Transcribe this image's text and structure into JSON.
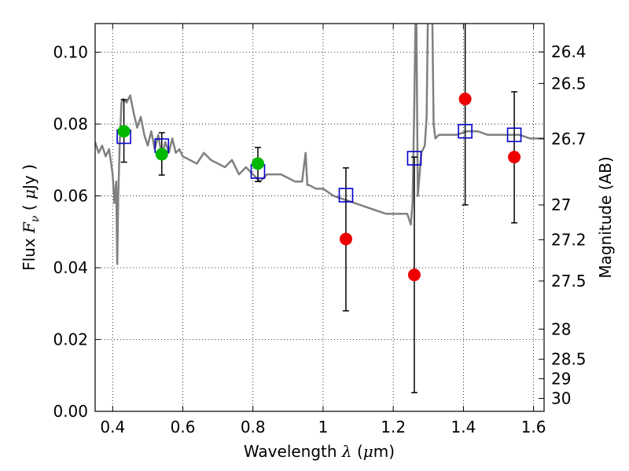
{
  "chart_data": {
    "type": "scatter",
    "xlabel": "Wavelength  λ (μm)",
    "ylabel": "Flux  Fν  ( μJy )",
    "y2label": "Magnitude (AB)",
    "xlim": [
      0.35,
      1.63
    ],
    "ylim": [
      0.0,
      0.108
    ],
    "x_ticks": [
      {
        "value": 0.4,
        "label": "0.4"
      },
      {
        "value": 0.6,
        "label": "0.6"
      },
      {
        "value": 0.8,
        "label": "0.8"
      },
      {
        "value": 1.0,
        "label": "1"
      },
      {
        "value": 1.2,
        "label": "1.2"
      },
      {
        "value": 1.4,
        "label": "1.4"
      },
      {
        "value": 1.6,
        "label": "1.6"
      }
    ],
    "y_ticks": [
      {
        "value": 0.0,
        "label": "0.00"
      },
      {
        "value": 0.02,
        "label": "0.02"
      },
      {
        "value": 0.04,
        "label": "0.04"
      },
      {
        "value": 0.06,
        "label": "0.06"
      },
      {
        "value": 0.08,
        "label": "0.08"
      },
      {
        "value": 0.1,
        "label": "0.10"
      }
    ],
    "mag_ticks": [
      {
        "flux": 0.1001,
        "label": "26.4"
      },
      {
        "flux": 0.0913,
        "label": "26.5"
      },
      {
        "flux": 0.0759,
        "label": "26.7"
      },
      {
        "flux": 0.0575,
        "label": "27"
      },
      {
        "flux": 0.0478,
        "label": "27.2"
      },
      {
        "flux": 0.0363,
        "label": "27.5"
      },
      {
        "flux": 0.0229,
        "label": "28"
      },
      {
        "flux": 0.0145,
        "label": "28.5"
      },
      {
        "flux": 0.0091,
        "label": "29"
      },
      {
        "flux": 0.0036,
        "label": "30"
      }
    ],
    "grid": true,
    "colors": {
      "model": "#808080",
      "model_flux": "#0000cc",
      "green_points": "#00b800",
      "red_points": "#ee0000",
      "errorbar": "#000000"
    },
    "series": [
      {
        "type": "line",
        "x": [
          0.35,
          0.36,
          0.37,
          0.38,
          0.39,
          0.4,
          0.405,
          0.41,
          0.413,
          0.416,
          0.42,
          0.425,
          0.43,
          0.44,
          0.45,
          0.46,
          0.47,
          0.48,
          0.49,
          0.5,
          0.51,
          0.52,
          0.53,
          0.54,
          0.55,
          0.56,
          0.57,
          0.58,
          0.59,
          0.6,
          0.62,
          0.64,
          0.66,
          0.68,
          0.7,
          0.72,
          0.74,
          0.76,
          0.78,
          0.8,
          0.82,
          0.84,
          0.86,
          0.88,
          0.9,
          0.92,
          0.94,
          0.95,
          0.955,
          0.96,
          0.98,
          1.0,
          1.03,
          1.06,
          1.09,
          1.12,
          1.15,
          1.18,
          1.21,
          1.24,
          1.25,
          1.255,
          1.26,
          1.265,
          1.27,
          1.28,
          1.29,
          1.295,
          1.3,
          1.31,
          1.315,
          1.32,
          1.33,
          1.35,
          1.38,
          1.41,
          1.44,
          1.47,
          1.5,
          1.53,
          1.56,
          1.59,
          1.62,
          1.63
        ],
        "y": [
          0.075,
          0.072,
          0.074,
          0.071,
          0.073,
          0.066,
          0.058,
          0.064,
          0.041,
          0.06,
          0.074,
          0.086,
          0.087,
          0.086,
          0.088,
          0.083,
          0.079,
          0.082,
          0.077,
          0.074,
          0.078,
          0.073,
          0.077,
          0.071,
          0.075,
          0.072,
          0.076,
          0.072,
          0.073,
          0.071,
          0.07,
          0.069,
          0.072,
          0.07,
          0.069,
          0.068,
          0.07,
          0.066,
          0.068,
          0.066,
          0.064,
          0.066,
          0.066,
          0.066,
          0.065,
          0.064,
          0.064,
          0.072,
          0.063,
          0.063,
          0.062,
          0.062,
          0.06,
          0.059,
          0.058,
          0.057,
          0.056,
          0.055,
          0.055,
          0.055,
          0.052,
          0.058,
          0.085,
          0.12,
          0.06,
          0.072,
          0.074,
          0.082,
          0.12,
          0.12,
          0.08,
          0.076,
          0.077,
          0.077,
          0.077,
          0.078,
          0.078,
          0.077,
          0.077,
          0.077,
          0.077,
          0.076,
          0.076,
          0.076
        ]
      },
      {
        "type": "scatter",
        "marker": "square",
        "x": [
          0.432,
          0.54,
          0.814,
          1.065,
          1.26,
          1.405,
          1.545
        ],
        "y": [
          0.0765,
          0.074,
          0.0668,
          0.0602,
          0.0705,
          0.078,
          0.077
        ]
      },
      {
        "type": "scatter",
        "marker": "circle",
        "x": [
          0.432,
          0.54,
          0.814
        ],
        "y": [
          0.078,
          0.0716,
          0.069
        ],
        "yerr_low": [
          0.0694,
          0.0658,
          0.064
        ],
        "yerr_high": [
          0.0868,
          0.0776,
          0.0735
        ]
      },
      {
        "type": "scatter",
        "marker": "circle",
        "x": [
          1.065,
          1.26,
          1.405,
          1.545
        ],
        "y": [
          0.048,
          0.038,
          0.087,
          0.0708
        ],
        "yerr_low": [
          0.028,
          0.0052,
          0.0575,
          0.0525
        ],
        "yerr_high": [
          0.0678,
          0.0708,
          0.109,
          0.089
        ]
      }
    ]
  }
}
